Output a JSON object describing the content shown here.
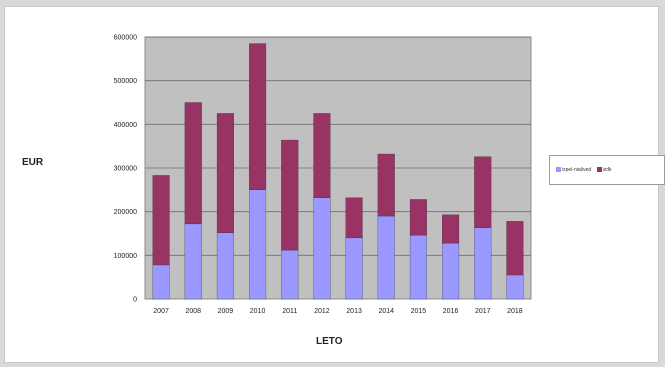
{
  "chart_data": {
    "type": "bar",
    "stacked": true,
    "categories": [
      "2007",
      "2008",
      "2009",
      "2010",
      "2011",
      "2012",
      "2013",
      "2014",
      "2015",
      "2016",
      "2017",
      "2018"
    ],
    "series": [
      {
        "name": "izpel-niašved",
        "color": "#9999ff",
        "values": [
          78000,
          172000,
          152000,
          250000,
          112000,
          232000,
          140000,
          190000,
          146000,
          128000,
          163000,
          55000
        ]
      },
      {
        "name": "izdk",
        "color": "#993366",
        "values": [
          205000,
          278000,
          273000,
          335000,
          252000,
          193000,
          92000,
          142000,
          82000,
          65000,
          163000,
          123000
        ]
      }
    ],
    "xlabel": "LETO",
    "ylabel": "EUR",
    "ylim": [
      0,
      600000
    ],
    "yticks": [
      "0",
      "100000",
      "200000",
      "300000",
      "400000",
      "500000",
      "600000"
    ],
    "grid": true,
    "plot_background": "#c0c0c0",
    "legend_position": "right"
  }
}
